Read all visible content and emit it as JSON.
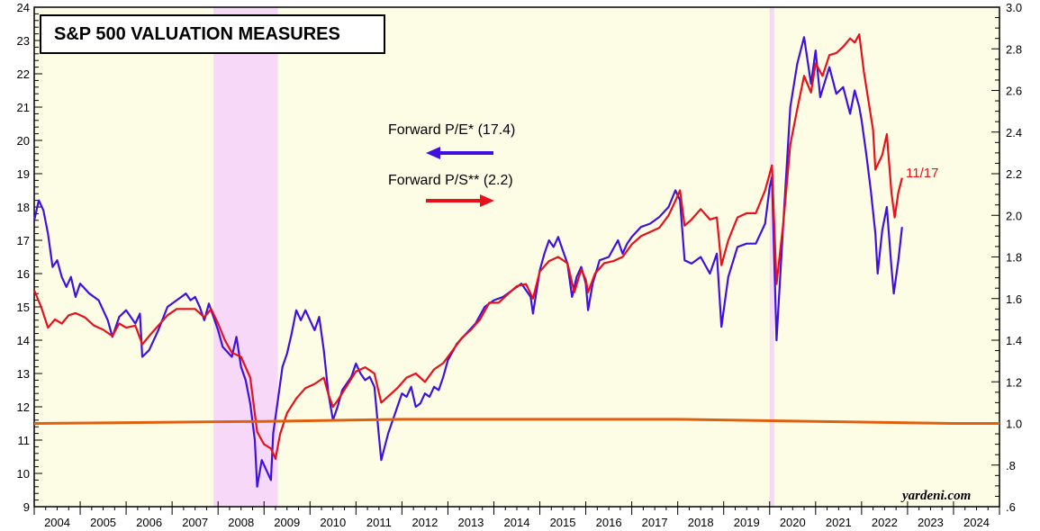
{
  "chart_data": {
    "type": "line",
    "title": "S&P 500 VALUATION MEASURES",
    "x_range": [
      2004,
      2025
    ],
    "x_tick_labels": [
      "2004",
      "2005",
      "2006",
      "2007",
      "2008",
      "2009",
      "2010",
      "2011",
      "2012",
      "2013",
      "2014",
      "2015",
      "2016",
      "2017",
      "2018",
      "2019",
      "2020",
      "2021",
      "2022",
      "2023",
      "2024"
    ],
    "y_left": {
      "range": [
        9,
        24
      ],
      "tick_labels": [
        "9",
        "10",
        "11",
        "12",
        "13",
        "14",
        "15",
        "16",
        "17",
        "18",
        "19",
        "20",
        "21",
        "22",
        "23",
        "24"
      ]
    },
    "y_right": {
      "range": [
        0.6,
        3.0
      ],
      "tick_labels": [
        ".6",
        ".8",
        "1.0",
        "1.2",
        "1.4",
        "1.6",
        "1.8",
        "2.0",
        "2.2",
        "2.4",
        "2.6",
        "2.8",
        "3.0"
      ]
    },
    "recessions": [
      [
        2007.9,
        2009.3
      ],
      [
        2020.0,
        2020.1
      ]
    ],
    "legend": [
      {
        "label": "Forward P/E* (17.4)",
        "color": "#3f10e0",
        "arrow": "left"
      },
      {
        "label": "Forward P/S** (2.2)",
        "color": "#e8101a",
        "arrow": "right"
      }
    ],
    "end_annotation": "11/17",
    "credit": "yardeni.com",
    "colors": {
      "pe": "#3f10e0",
      "ps": "#e8101a",
      "baseline": "#e06010",
      "background": "#fdfde6",
      "recession": "#f8d8f8"
    },
    "series": [
      {
        "name": "Forward P/E* (17.4)",
        "axis": "left",
        "color": "#3f10e0",
        "points": [
          [
            2004.0,
            17.6
          ],
          [
            2004.1,
            18.2
          ],
          [
            2004.2,
            17.9
          ],
          [
            2004.3,
            17.2
          ],
          [
            2004.4,
            16.2
          ],
          [
            2004.5,
            16.4
          ],
          [
            2004.6,
            15.9
          ],
          [
            2004.7,
            15.6
          ],
          [
            2004.8,
            15.9
          ],
          [
            2004.9,
            15.3
          ],
          [
            2005.0,
            15.7
          ],
          [
            2005.2,
            15.4
          ],
          [
            2005.4,
            15.2
          ],
          [
            2005.6,
            14.6
          ],
          [
            2005.7,
            14.1
          ],
          [
            2005.85,
            14.7
          ],
          [
            2006.0,
            14.9
          ],
          [
            2006.2,
            14.5
          ],
          [
            2006.3,
            14.8
          ],
          [
            2006.35,
            13.5
          ],
          [
            2006.5,
            13.7
          ],
          [
            2006.7,
            14.3
          ],
          [
            2006.9,
            15.0
          ],
          [
            2007.1,
            15.2
          ],
          [
            2007.3,
            15.4
          ],
          [
            2007.4,
            15.2
          ],
          [
            2007.5,
            15.3
          ],
          [
            2007.6,
            15.0
          ],
          [
            2007.7,
            14.6
          ],
          [
            2007.8,
            15.1
          ],
          [
            2007.9,
            14.7
          ],
          [
            2008.0,
            14.3
          ],
          [
            2008.1,
            13.8
          ],
          [
            2008.3,
            13.5
          ],
          [
            2008.4,
            14.1
          ],
          [
            2008.5,
            13.2
          ],
          [
            2008.6,
            12.8
          ],
          [
            2008.7,
            12.1
          ],
          [
            2008.8,
            11.0
          ],
          [
            2008.85,
            9.6
          ],
          [
            2008.95,
            10.4
          ],
          [
            2009.05,
            10.1
          ],
          [
            2009.15,
            9.8
          ],
          [
            2009.2,
            11.2
          ],
          [
            2009.3,
            12.2
          ],
          [
            2009.4,
            13.2
          ],
          [
            2009.5,
            13.6
          ],
          [
            2009.6,
            14.2
          ],
          [
            2009.7,
            14.9
          ],
          [
            2009.8,
            14.6
          ],
          [
            2009.9,
            14.9
          ],
          [
            2010.0,
            14.6
          ],
          [
            2010.1,
            14.3
          ],
          [
            2010.2,
            14.7
          ],
          [
            2010.3,
            13.7
          ],
          [
            2010.4,
            12.4
          ],
          [
            2010.5,
            11.6
          ],
          [
            2010.6,
            12.0
          ],
          [
            2010.7,
            12.5
          ],
          [
            2010.8,
            12.7
          ],
          [
            2010.9,
            12.9
          ],
          [
            2011.0,
            13.3
          ],
          [
            2011.1,
            13.0
          ],
          [
            2011.2,
            12.8
          ],
          [
            2011.3,
            12.9
          ],
          [
            2011.4,
            12.6
          ],
          [
            2011.5,
            11.1
          ],
          [
            2011.55,
            10.4
          ],
          [
            2011.7,
            11.2
          ],
          [
            2011.8,
            11.6
          ],
          [
            2011.9,
            12.0
          ],
          [
            2012.0,
            12.4
          ],
          [
            2012.1,
            12.3
          ],
          [
            2012.2,
            12.6
          ],
          [
            2012.3,
            12.0
          ],
          [
            2012.4,
            12.1
          ],
          [
            2012.5,
            12.4
          ],
          [
            2012.6,
            12.3
          ],
          [
            2012.7,
            12.6
          ],
          [
            2012.8,
            12.5
          ],
          [
            2012.9,
            12.9
          ],
          [
            2013.0,
            13.4
          ],
          [
            2013.2,
            13.9
          ],
          [
            2013.4,
            14.2
          ],
          [
            2013.6,
            14.5
          ],
          [
            2013.8,
            15.0
          ],
          [
            2014.0,
            15.2
          ],
          [
            2014.2,
            15.3
          ],
          [
            2014.4,
            15.5
          ],
          [
            2014.6,
            15.7
          ],
          [
            2014.8,
            15.3
          ],
          [
            2014.85,
            14.8
          ],
          [
            2015.0,
            16.1
          ],
          [
            2015.1,
            16.6
          ],
          [
            2015.2,
            17.0
          ],
          [
            2015.3,
            16.8
          ],
          [
            2015.4,
            17.1
          ],
          [
            2015.5,
            16.7
          ],
          [
            2015.6,
            16.3
          ],
          [
            2015.7,
            15.3
          ],
          [
            2015.8,
            15.9
          ],
          [
            2015.9,
            16.2
          ],
          [
            2016.0,
            15.7
          ],
          [
            2016.05,
            14.9
          ],
          [
            2016.15,
            15.7
          ],
          [
            2016.3,
            16.4
          ],
          [
            2016.5,
            16.5
          ],
          [
            2016.7,
            17.0
          ],
          [
            2016.8,
            16.6
          ],
          [
            2016.9,
            16.9
          ],
          [
            2017.0,
            17.1
          ],
          [
            2017.2,
            17.4
          ],
          [
            2017.4,
            17.5
          ],
          [
            2017.6,
            17.7
          ],
          [
            2017.8,
            18.0
          ],
          [
            2017.95,
            18.5
          ],
          [
            2018.05,
            18.2
          ],
          [
            2018.15,
            16.4
          ],
          [
            2018.3,
            16.3
          ],
          [
            2018.5,
            16.5
          ],
          [
            2018.7,
            16.0
          ],
          [
            2018.85,
            16.6
          ],
          [
            2018.95,
            14.4
          ],
          [
            2019.1,
            15.9
          ],
          [
            2019.3,
            16.8
          ],
          [
            2019.5,
            16.9
          ],
          [
            2019.7,
            16.9
          ],
          [
            2019.9,
            17.5
          ],
          [
            2020.0,
            18.6
          ],
          [
            2020.05,
            18.9
          ],
          [
            2020.15,
            14.0
          ],
          [
            2020.3,
            17.6
          ],
          [
            2020.45,
            21.0
          ],
          [
            2020.6,
            22.3
          ],
          [
            2020.75,
            23.1
          ],
          [
            2020.9,
            21.7
          ],
          [
            2021.0,
            22.7
          ],
          [
            2021.1,
            21.3
          ],
          [
            2021.3,
            22.2
          ],
          [
            2021.45,
            21.4
          ],
          [
            2021.6,
            21.6
          ],
          [
            2021.75,
            20.8
          ],
          [
            2021.85,
            21.5
          ],
          [
            2021.95,
            21.0
          ],
          [
            2022.0,
            20.6
          ],
          [
            2022.1,
            19.6
          ],
          [
            2022.2,
            18.5
          ],
          [
            2022.3,
            17.2
          ],
          [
            2022.35,
            16.0
          ],
          [
            2022.45,
            17.3
          ],
          [
            2022.55,
            18.0
          ],
          [
            2022.65,
            16.2
          ],
          [
            2022.7,
            15.4
          ],
          [
            2022.8,
            16.4
          ],
          [
            2022.88,
            17.4
          ]
        ]
      },
      {
        "name": "Forward P/S** (2.2)",
        "axis": "right",
        "color": "#e8101a",
        "points": [
          [
            2004.0,
            1.64
          ],
          [
            2004.15,
            1.56
          ],
          [
            2004.3,
            1.46
          ],
          [
            2004.45,
            1.5
          ],
          [
            2004.6,
            1.48
          ],
          [
            2004.75,
            1.52
          ],
          [
            2004.9,
            1.53
          ],
          [
            2005.1,
            1.51
          ],
          [
            2005.3,
            1.47
          ],
          [
            2005.5,
            1.45
          ],
          [
            2005.7,
            1.42
          ],
          [
            2005.85,
            1.48
          ],
          [
            2006.0,
            1.46
          ],
          [
            2006.2,
            1.47
          ],
          [
            2006.35,
            1.38
          ],
          [
            2006.5,
            1.42
          ],
          [
            2006.7,
            1.47
          ],
          [
            2006.9,
            1.52
          ],
          [
            2007.1,
            1.55
          ],
          [
            2007.3,
            1.55
          ],
          [
            2007.5,
            1.55
          ],
          [
            2007.7,
            1.51
          ],
          [
            2007.85,
            1.55
          ],
          [
            2008.0,
            1.48
          ],
          [
            2008.15,
            1.4
          ],
          [
            2008.3,
            1.34
          ],
          [
            2008.5,
            1.32
          ],
          [
            2008.7,
            1.22
          ],
          [
            2008.85,
            0.96
          ],
          [
            2009.0,
            0.9
          ],
          [
            2009.15,
            0.88
          ],
          [
            2009.25,
            0.83
          ],
          [
            2009.35,
            0.95
          ],
          [
            2009.5,
            1.05
          ],
          [
            2009.7,
            1.12
          ],
          [
            2009.9,
            1.17
          ],
          [
            2010.1,
            1.19
          ],
          [
            2010.3,
            1.22
          ],
          [
            2010.4,
            1.14
          ],
          [
            2010.5,
            1.08
          ],
          [
            2010.6,
            1.11
          ],
          [
            2010.8,
            1.18
          ],
          [
            2011.0,
            1.25
          ],
          [
            2011.2,
            1.27
          ],
          [
            2011.4,
            1.24
          ],
          [
            2011.55,
            1.1
          ],
          [
            2011.7,
            1.13
          ],
          [
            2011.9,
            1.17
          ],
          [
            2012.1,
            1.22
          ],
          [
            2012.3,
            1.24
          ],
          [
            2012.5,
            1.2
          ],
          [
            2012.7,
            1.26
          ],
          [
            2012.9,
            1.29
          ],
          [
            2013.1,
            1.35
          ],
          [
            2013.3,
            1.41
          ],
          [
            2013.5,
            1.45
          ],
          [
            2013.7,
            1.5
          ],
          [
            2013.9,
            1.58
          ],
          [
            2014.1,
            1.58
          ],
          [
            2014.3,
            1.62
          ],
          [
            2014.5,
            1.66
          ],
          [
            2014.7,
            1.67
          ],
          [
            2014.85,
            1.6
          ],
          [
            2015.0,
            1.73
          ],
          [
            2015.2,
            1.78
          ],
          [
            2015.4,
            1.8
          ],
          [
            2015.6,
            1.77
          ],
          [
            2015.75,
            1.63
          ],
          [
            2015.9,
            1.74
          ],
          [
            2016.0,
            1.69
          ],
          [
            2016.05,
            1.63
          ],
          [
            2016.2,
            1.72
          ],
          [
            2016.4,
            1.77
          ],
          [
            2016.6,
            1.78
          ],
          [
            2016.8,
            1.8
          ],
          [
            2017.0,
            1.86
          ],
          [
            2017.2,
            1.9
          ],
          [
            2017.4,
            1.92
          ],
          [
            2017.6,
            1.94
          ],
          [
            2017.8,
            2.0
          ],
          [
            2017.95,
            2.07
          ],
          [
            2018.05,
            2.12
          ],
          [
            2018.15,
            1.95
          ],
          [
            2018.3,
            1.98
          ],
          [
            2018.5,
            2.03
          ],
          [
            2018.7,
            1.98
          ],
          [
            2018.85,
            1.99
          ],
          [
            2018.95,
            1.76
          ],
          [
            2019.1,
            1.88
          ],
          [
            2019.3,
            1.99
          ],
          [
            2019.5,
            2.01
          ],
          [
            2019.7,
            2.01
          ],
          [
            2019.9,
            2.12
          ],
          [
            2020.0,
            2.2
          ],
          [
            2020.05,
            2.24
          ],
          [
            2020.15,
            1.67
          ],
          [
            2020.3,
            1.97
          ],
          [
            2020.45,
            2.34
          ],
          [
            2020.6,
            2.51
          ],
          [
            2020.75,
            2.67
          ],
          [
            2020.9,
            2.59
          ],
          [
            2021.0,
            2.73
          ],
          [
            2021.15,
            2.67
          ],
          [
            2021.3,
            2.77
          ],
          [
            2021.45,
            2.78
          ],
          [
            2021.6,
            2.81
          ],
          [
            2021.75,
            2.85
          ],
          [
            2021.85,
            2.83
          ],
          [
            2021.95,
            2.87
          ],
          [
            2022.05,
            2.69
          ],
          [
            2022.15,
            2.55
          ],
          [
            2022.25,
            2.41
          ],
          [
            2022.3,
            2.22
          ],
          [
            2022.45,
            2.29
          ],
          [
            2022.55,
            2.39
          ],
          [
            2022.65,
            2.11
          ],
          [
            2022.72,
            1.99
          ],
          [
            2022.8,
            2.11
          ],
          [
            2022.88,
            2.18
          ]
        ]
      },
      {
        "name": "",
        "axis": "right",
        "color": "#e06010",
        "points": [
          [
            2004.0,
            1.0
          ],
          [
            2009.0,
            1.01
          ],
          [
            2012.0,
            1.02
          ],
          [
            2015.0,
            1.02
          ],
          [
            2018.0,
            1.02
          ],
          [
            2021.0,
            1.01
          ],
          [
            2024.0,
            1.0
          ],
          [
            2025.0,
            1.0
          ]
        ]
      }
    ]
  }
}
